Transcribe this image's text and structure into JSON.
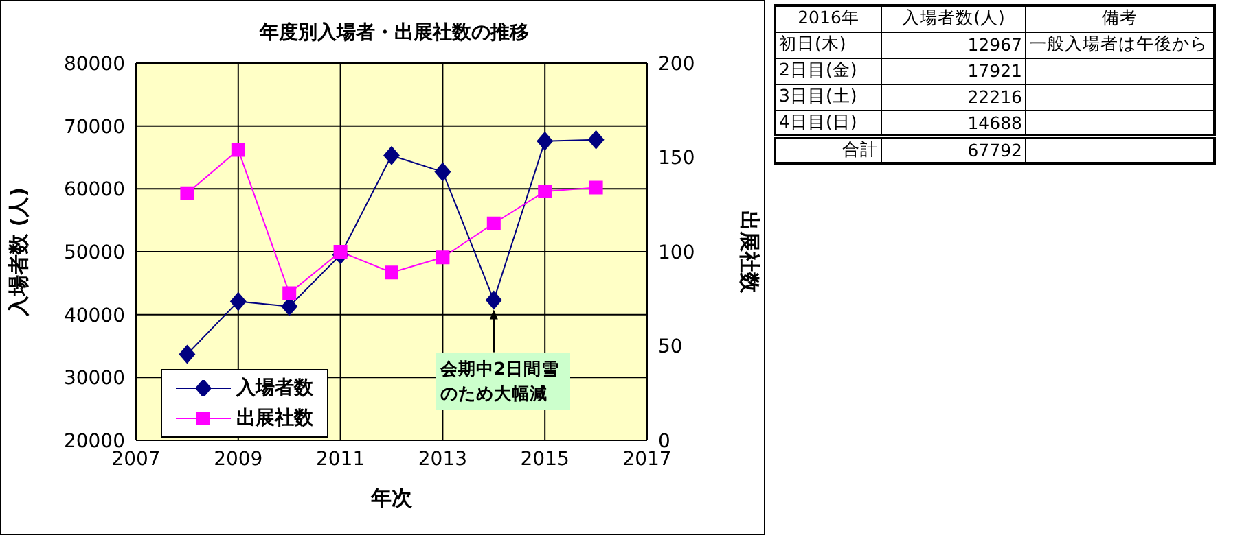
{
  "chart_data": [
    {
      "type": "line",
      "title": "年度別入場者・出展社数の推移",
      "xlabel": "年次",
      "ylabel": "入場者数 (人)",
      "y2label": "出展社数",
      "x": [
        2008,
        2009,
        2010,
        2011,
        2012,
        2013,
        2014,
        2015,
        2016
      ],
      "series": [
        {
          "name": "入場者数",
          "color": "#000080",
          "marker": "diamond",
          "values": [
            33700,
            42100,
            41300,
            49500,
            65300,
            62700,
            42300,
            67600,
            67800
          ]
        },
        {
          "name": "出展社数",
          "color": "#ff00ff",
          "marker": "square",
          "axis": "y2",
          "values": [
            131,
            154,
            78,
            100,
            89,
            97,
            115,
            132,
            134
          ]
        }
      ],
      "xlim": [
        2007,
        2017
      ],
      "xticks": [
        2007,
        2009,
        2011,
        2013,
        2015,
        2017
      ],
      "ylim": [
        20000,
        80000
      ],
      "yticks": [
        20000,
        30000,
        40000,
        50000,
        60000,
        70000,
        80000
      ],
      "y2lim": [
        0,
        200
      ],
      "y2ticks": [
        0,
        50,
        100,
        150,
        200
      ],
      "grid": true,
      "legend": "bottom left",
      "annotations": [
        {
          "text": "会期中2日間雪のため大幅減",
          "x": 2014,
          "y": 42300
        }
      ]
    },
    {
      "type": "other",
      "cells": [
        [
          "2016年",
          "入場者数(人)",
          "備考"
        ],
        [
          "初日(木)",
          "12967",
          "一般入場者は午後から"
        ],
        [
          "2日目(金)",
          "17921",
          null
        ],
        [
          "3日目(土)",
          "22216",
          null
        ],
        [
          "4日目(日)",
          "14688",
          null
        ],
        [
          "合計",
          "67792",
          null
        ]
      ]
    }
  ]
}
